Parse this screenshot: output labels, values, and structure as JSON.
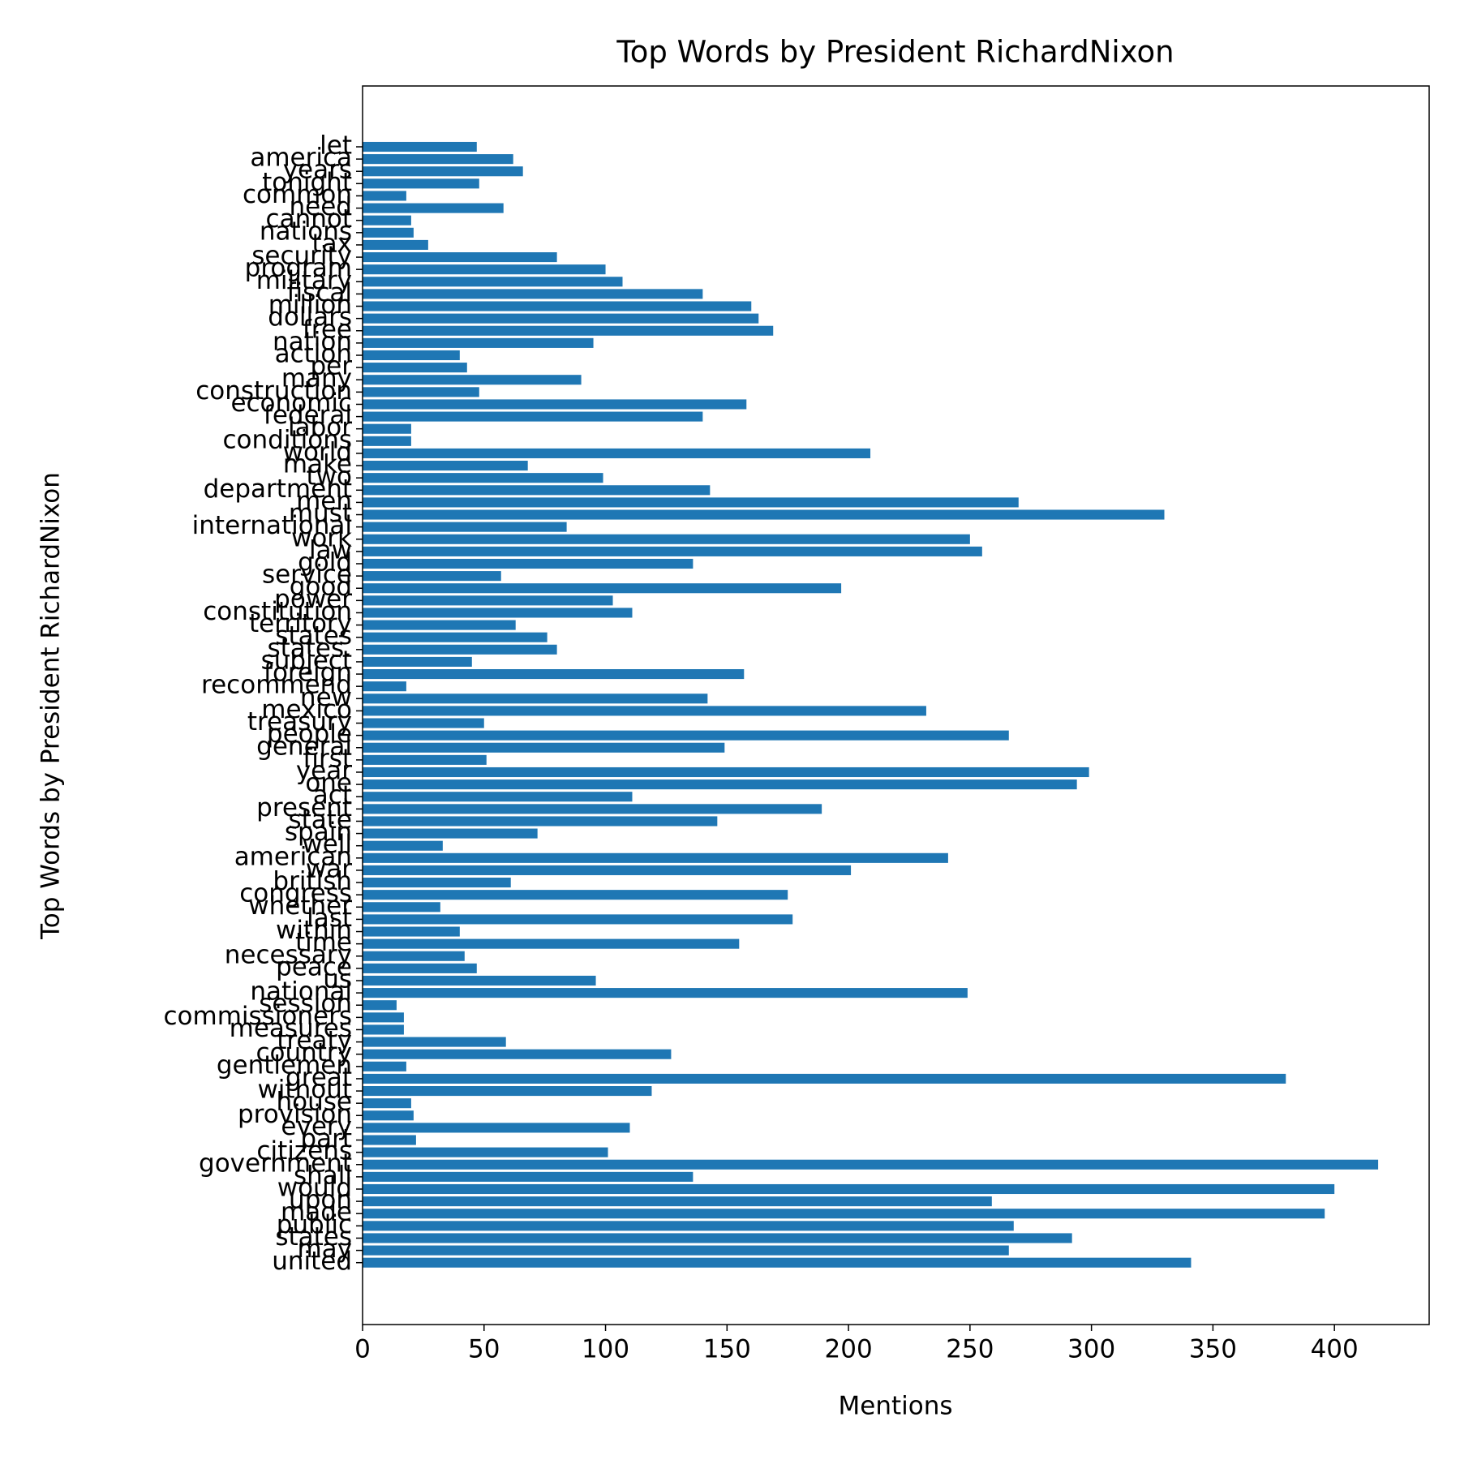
{
  "chart_data": {
    "type": "barh",
    "title": "Top Words by President RichardNixon",
    "xlabel": "Mentions",
    "ylabel": "Top Words by President RichardNixon",
    "color": "#1f77b4",
    "categories": [
      "united",
      "may",
      "states",
      "public",
      "made",
      "upon",
      "would",
      "shall",
      "government",
      "citizens",
      "part",
      "every",
      "provision",
      "house",
      "without",
      "great",
      "gentlemen",
      "country",
      "treaty",
      "measures",
      "commissioners",
      "session",
      "national",
      "us",
      "peace",
      "necessary",
      "time",
      "within",
      "last",
      "whether",
      "congress",
      "british",
      "war",
      "american",
      "well",
      "spain",
      "state",
      "present",
      "act",
      "one",
      "year",
      "first",
      "general",
      "people",
      "treasury",
      "mexico",
      "new",
      "recommend",
      "foreign",
      "subject",
      "states.",
      "states",
      "territory",
      "constitution",
      "power",
      "good",
      "service",
      "gold",
      "law",
      "work",
      "international",
      "must",
      "men",
      "department",
      "two",
      "make",
      "world",
      "conditions",
      "labor",
      "federal",
      "economic",
      "construction",
      "many",
      "per",
      "action",
      "nation",
      "free",
      "dollars",
      "million",
      "fiscal",
      "military",
      "program",
      "security",
      "tax",
      "nations",
      "cannot",
      "need",
      "common",
      "tonight",
      "years",
      "america",
      "let"
    ],
    "values": [
      341,
      266,
      292,
      268,
      396,
      259,
      400,
      136,
      418,
      101,
      22,
      110,
      21,
      20,
      119,
      380,
      18,
      127,
      59,
      17,
      17,
      14,
      249,
      96,
      47,
      42,
      155,
      40,
      177,
      32,
      175,
      61,
      201,
      241,
      33,
      72,
      146,
      189,
      111,
      294,
      299,
      51,
      149,
      266,
      50,
      232,
      142,
      18,
      157,
      45,
      80,
      76,
      63,
      111,
      103,
      197,
      57,
      136,
      255,
      250,
      84,
      330,
      270,
      143,
      99,
      68,
      209,
      20,
      20,
      140,
      158,
      48,
      90,
      43,
      40,
      95,
      169,
      163,
      160,
      140,
      107,
      100,
      80,
      27,
      21,
      20,
      58,
      18,
      48,
      66,
      62,
      47
    ],
    "xlim": [
      0,
      439
    ],
    "xticks": [
      0,
      50,
      100,
      150,
      200,
      250,
      300,
      350,
      400
    ]
  }
}
